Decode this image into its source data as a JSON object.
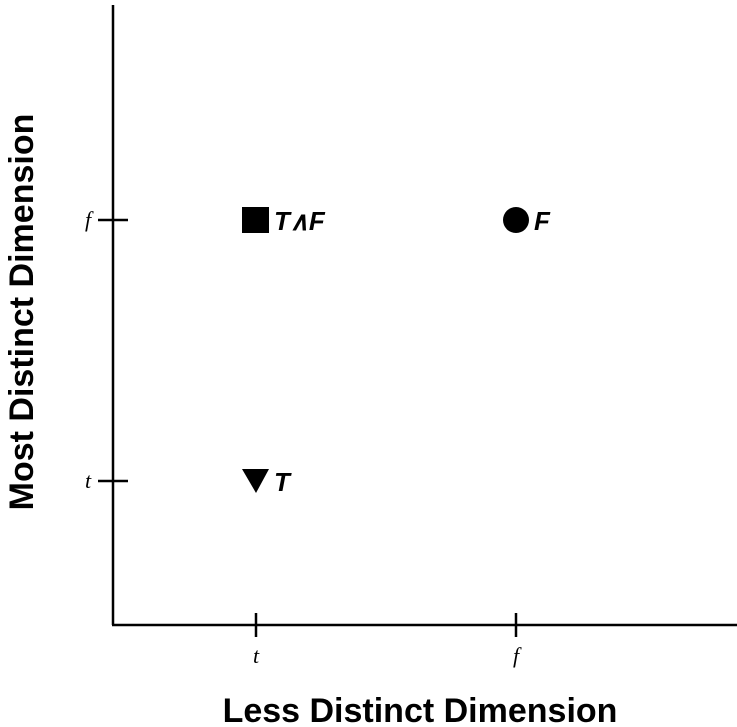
{
  "chart_data": {
    "type": "scatter",
    "xlabel": "Less Distinct Dimension",
    "ylabel": "Most Distinct Dimension",
    "x_categories": [
      "t",
      "f"
    ],
    "y_categories": [
      "t",
      "f"
    ],
    "grid": false,
    "points": [
      {
        "x": "t",
        "y": "f",
        "marker": "square",
        "label": "T∧F"
      },
      {
        "x": "f",
        "y": "f",
        "marker": "circle",
        "label": "F"
      },
      {
        "x": "t",
        "y": "t",
        "marker": "triangle-down",
        "label": "T"
      }
    ]
  }
}
